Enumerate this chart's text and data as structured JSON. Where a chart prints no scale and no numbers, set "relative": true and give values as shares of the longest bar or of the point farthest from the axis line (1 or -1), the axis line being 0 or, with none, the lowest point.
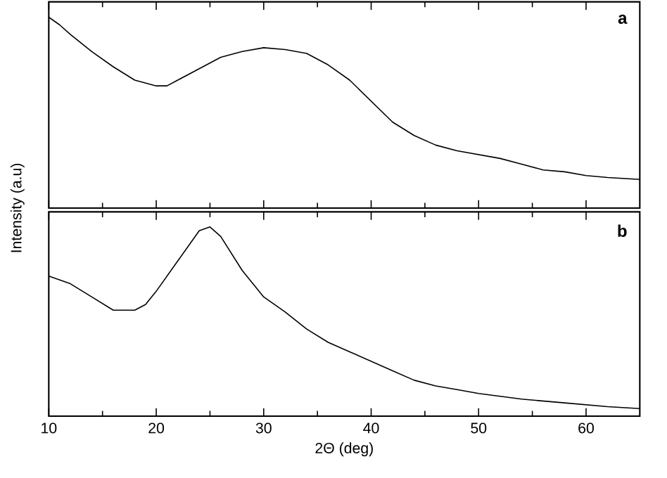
{
  "chart_data": [
    {
      "type": "line",
      "relative": true,
      "ylabel": "Intensity (a.u)",
      "annotations": [
        "**a**"
      ],
      "tick_labels": false,
      "marker": "none",
      "color": "#000000",
      "x": [
        10,
        11,
        12,
        14,
        15,
        16,
        18,
        20,
        21,
        22,
        24,
        26,
        28,
        30,
        32,
        34,
        36,
        38,
        40,
        42,
        44,
        46,
        48,
        50,
        52,
        54,
        56,
        58,
        60,
        62,
        65
      ],
      "values": [
        1.0,
        0.96,
        0.91,
        0.82,
        0.78,
        0.74,
        0.67,
        0.64,
        0.64,
        0.67,
        0.73,
        0.79,
        0.82,
        0.84,
        0.83,
        0.81,
        0.75,
        0.67,
        0.56,
        0.45,
        0.38,
        0.33,
        0.3,
        0.28,
        0.26,
        0.23,
        0.2,
        0.19,
        0.17,
        0.16,
        0.15
      ],
      "xlim": [
        10,
        65
      ],
      "xticks": [
        10,
        20,
        30,
        40,
        50,
        60
      ]
    },
    {
      "type": "line",
      "relative": true,
      "xlabel": "2Θ (deg)",
      "annotations": [
        "**b**"
      ],
      "tick_labels": "x",
      "marker": "none",
      "color": "#000000",
      "x": [
        10,
        12,
        14,
        16,
        18,
        19,
        20,
        22,
        24,
        25,
        26,
        28,
        30,
        32,
        34,
        36,
        38,
        40,
        42,
        44,
        46,
        48,
        50,
        54,
        58,
        62,
        65
      ],
      "values": [
        0.74,
        0.7,
        0.63,
        0.56,
        0.56,
        0.59,
        0.66,
        0.82,
        0.98,
        1.0,
        0.95,
        0.77,
        0.63,
        0.55,
        0.46,
        0.39,
        0.34,
        0.29,
        0.24,
        0.19,
        0.16,
        0.14,
        0.12,
        0.09,
        0.07,
        0.05,
        0.04
      ],
      "xlim": [
        10,
        65
      ],
      "xticks": [
        10,
        20,
        30,
        40,
        50,
        60
      ]
    }
  ]
}
